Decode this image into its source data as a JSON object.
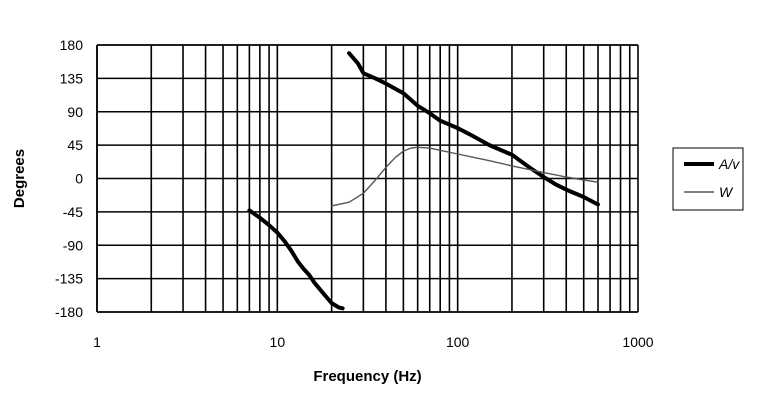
{
  "chart_data": {
    "type": "line",
    "title": "",
    "xlabel": "Frequency (Hz)",
    "ylabel": "Degrees",
    "x_scale": "log",
    "xlim": [
      1,
      1000
    ],
    "ylim": [
      -180,
      180
    ],
    "x_ticks": [
      "1",
      "10",
      "100",
      "1000"
    ],
    "y_ticks": [
      "180",
      "135",
      "90",
      "45",
      "0",
      "-45",
      "-90",
      "-135",
      "-180"
    ],
    "grid": true,
    "legend_position": "right",
    "series": [
      {
        "name": "A/v",
        "color": "#000000",
        "style": "thick",
        "segments": [
          [
            [
              7,
              -43
            ],
            [
              8,
              -53
            ],
            [
              9,
              -63
            ],
            [
              10,
              -73
            ],
            [
              11,
              -85
            ],
            [
              12,
              -98
            ],
            [
              13,
              -112
            ],
            [
              14,
              -122
            ],
            [
              15,
              -130
            ],
            [
              16,
              -140
            ],
            [
              18,
              -155
            ],
            [
              20,
              -168
            ],
            [
              22,
              -174
            ],
            [
              23,
              -175
            ]
          ],
          [
            [
              25,
              169
            ],
            [
              28,
              155
            ],
            [
              30,
              142
            ],
            [
              35,
              135
            ],
            [
              40,
              128
            ],
            [
              50,
              115
            ],
            [
              60,
              98
            ],
            [
              70,
              88
            ],
            [
              80,
              78
            ],
            [
              100,
              68
            ],
            [
              120,
              58
            ],
            [
              150,
              45
            ],
            [
              200,
              32
            ],
            [
              250,
              15
            ],
            [
              300,
              2
            ],
            [
              350,
              -8
            ],
            [
              400,
              -15
            ],
            [
              500,
              -25
            ],
            [
              600,
              -35
            ]
          ]
        ]
      },
      {
        "name": "W",
        "color": "#555555",
        "style": "thin",
        "segments": [
          [
            [
              20,
              -37
            ],
            [
              25,
              -32
            ],
            [
              30,
              -20
            ],
            [
              35,
              -2
            ],
            [
              40,
              15
            ],
            [
              45,
              28
            ],
            [
              50,
              37
            ],
            [
              55,
              41
            ],
            [
              60,
              42
            ],
            [
              70,
              41
            ],
            [
              80,
              38
            ],
            [
              100,
              33
            ],
            [
              150,
              24
            ],
            [
              200,
              17
            ],
            [
              300,
              8
            ],
            [
              400,
              2
            ],
            [
              500,
              -2
            ],
            [
              600,
              -5
            ]
          ]
        ]
      }
    ]
  }
}
